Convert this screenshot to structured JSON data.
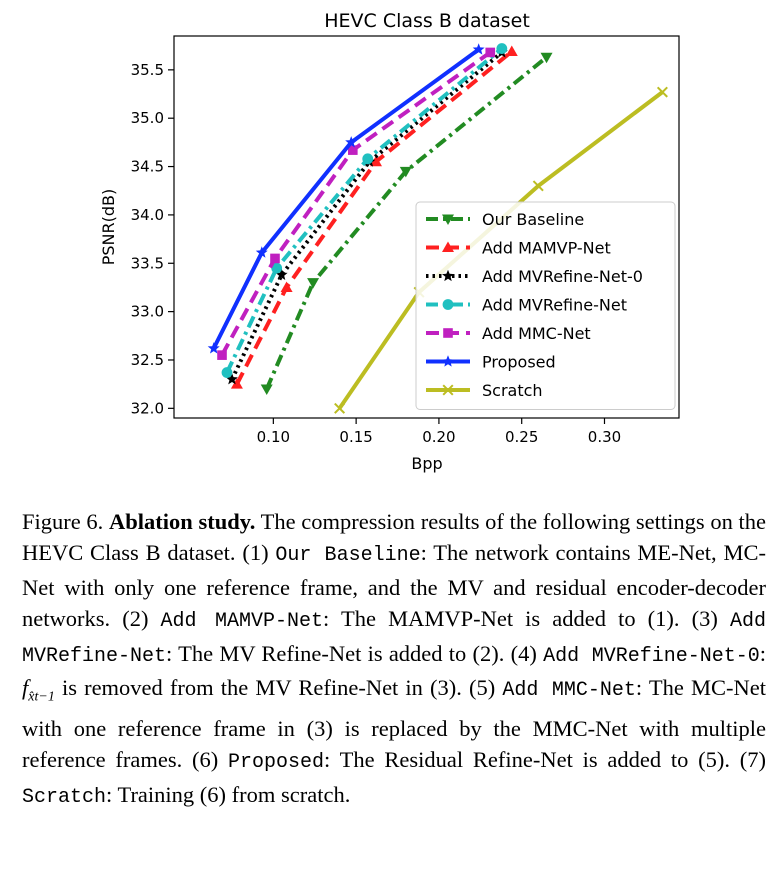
{
  "chart_data": {
    "type": "line",
    "title": "HEVC Class B dataset",
    "xlabel": "Bpp",
    "ylabel": "PSNR(dB)",
    "xlim": [
      0.04,
      0.345
    ],
    "ylim": [
      31.9,
      35.85
    ],
    "xticks": [
      0.1,
      0.15,
      0.2,
      0.25,
      0.3
    ],
    "xtick_labels": [
      "0.10",
      "0.15",
      "0.20",
      "0.25",
      "0.30"
    ],
    "yticks": [
      32.0,
      32.5,
      33.0,
      33.5,
      34.0,
      34.5,
      35.0,
      35.5
    ],
    "ytick_labels": [
      "32.0",
      "32.5",
      "33.0",
      "33.5",
      "34.0",
      "34.5",
      "35.0",
      "35.5"
    ],
    "grid": false,
    "legend_position": "lower-right",
    "series": [
      {
        "name": "Our Baseline",
        "color": "#228b22",
        "marker": "triangle-down",
        "dash": "12 5 3 5",
        "x": [
          0.096,
          0.124,
          0.18,
          0.265
        ],
        "y": [
          32.2,
          33.3,
          34.45,
          35.63
        ]
      },
      {
        "name": "Add MAMVP-Net",
        "color": "#ff2020",
        "marker": "triangle-up",
        "dash": "13 7",
        "x": [
          0.078,
          0.108,
          0.162,
          0.244
        ],
        "y": [
          32.25,
          33.25,
          34.55,
          35.69
        ]
      },
      {
        "name": "Add MVRefine-Net-0",
        "color": "#000000",
        "marker": "star",
        "dash": "2.5 4",
        "x": [
          0.075,
          0.105,
          0.158,
          0.238
        ],
        "y": [
          32.3,
          33.38,
          34.55,
          35.68
        ]
      },
      {
        "name": "Add MVRefine-Net",
        "color": "#20c0c0",
        "marker": "circle",
        "dash": "12 5 3 5",
        "x": [
          0.072,
          0.102,
          0.157,
          0.238
        ],
        "y": [
          32.37,
          33.45,
          34.58,
          35.72
        ]
      },
      {
        "name": "Add MMC-Net",
        "color": "#c020c0",
        "marker": "square",
        "dash": "13 7",
        "x": [
          0.069,
          0.101,
          0.148,
          0.231
        ],
        "y": [
          32.55,
          33.55,
          34.67,
          35.68
        ]
      },
      {
        "name": "Proposed",
        "color": "#1030ff",
        "marker": "star",
        "dash": "",
        "x": [
          0.064,
          0.093,
          0.147,
          0.224
        ],
        "y": [
          32.62,
          33.61,
          34.75,
          35.71
        ]
      },
      {
        "name": "Scratch",
        "color": "#bcbd22",
        "marker": "x",
        "dash": "",
        "x": [
          0.14,
          0.188,
          0.26,
          0.335
        ],
        "y": [
          32.0,
          33.2,
          34.3,
          35.27
        ]
      }
    ]
  },
  "caption": {
    "fig_label": "Figure 6.",
    "bold_title": "Ablation study.",
    "intro": " The compression results of the following settings on the HEVC Class B dataset. (1) ",
    "s1_name": "Our Baseline",
    "s1_text": ": The network contains ME-Net, MC-Net with only one reference frame, and the MV and residual encoder-decoder networks. (2) ",
    "s2_name": "Add MAMVP-Net",
    "s2_text": ": The MAMVP-Net is added to (1). (3) ",
    "s3_name": "Add MVRefine-Net",
    "s3_text": ": The MV Refine-Net is added to (2). (4) ",
    "s4_name": "Add MVRefine-Net-0",
    "s4_text_a": ": ",
    "math_f": "f",
    "math_sub": "x̂t−1",
    "s4_text_b": " is removed from the MV Refine-Net in (3). (5) ",
    "s5_name": "Add MMC-Net",
    "s5_text": ": The MC-Net with one reference frame in (3) is replaced by the MMC-Net with multiple reference frames. (6) ",
    "s6_name": "Proposed",
    "s6_text": ": The Residual Refine-Net is added to (5). (7) ",
    "s7_name": "Scratch",
    "s7_text": ": Training (6) from scratch."
  }
}
